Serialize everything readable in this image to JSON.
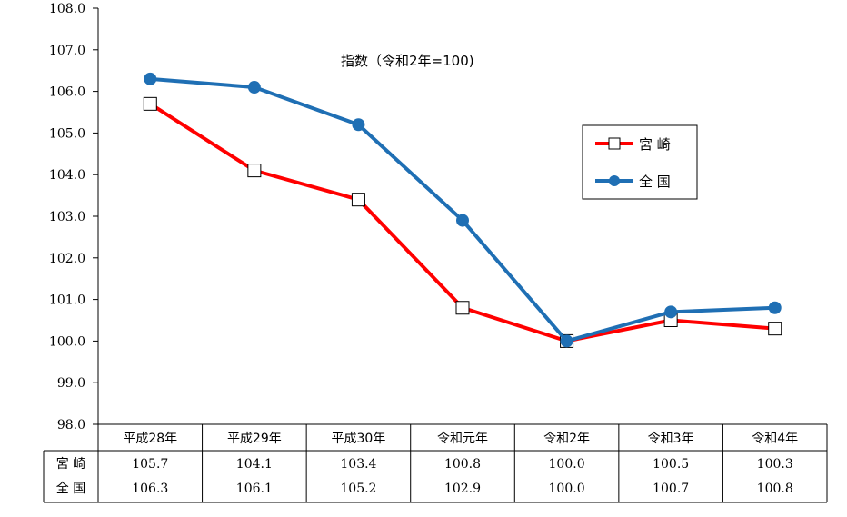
{
  "chart_data": {
    "type": "line",
    "annotation": "指数（令和2年=100)",
    "categories": [
      "平成28年",
      "平成29年",
      "平成30年",
      "令和元年",
      "令和2年",
      "令和3年",
      "令和4年"
    ],
    "ylim": [
      98.0,
      108.0
    ],
    "yticks": [
      "98.0",
      "99.0",
      "100.0",
      "101.0",
      "102.0",
      "103.0",
      "104.0",
      "105.0",
      "106.0",
      "107.0",
      "108.0"
    ],
    "grid": false,
    "legend_position": "right",
    "series": [
      {
        "name": "宮 崎",
        "color": "#ff0000",
        "marker": "square",
        "values": [
          105.7,
          104.1,
          103.4,
          100.8,
          100.0,
          100.5,
          100.3
        ],
        "labels": [
          "105.7",
          "104.1",
          "103.4",
          "100.8",
          "100.0",
          "100.5",
          "100.3"
        ]
      },
      {
        "name": "全 国",
        "color": "#1f6fb4",
        "marker": "circle",
        "values": [
          106.3,
          106.1,
          105.2,
          102.9,
          100.0,
          100.7,
          100.8
        ],
        "labels": [
          "106.3",
          "106.1",
          "105.2",
          "102.9",
          "100.0",
          "100.7",
          "100.8"
        ]
      }
    ]
  }
}
